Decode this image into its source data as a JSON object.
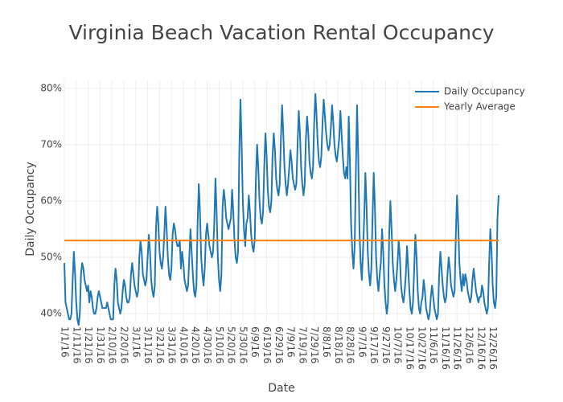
{
  "chart_data": {
    "type": "line",
    "title": "Virginia Beach Vacation Rental Occupancy",
    "x_label": "Date",
    "y_label": "Daily Occupancy",
    "xlim": [
      "1/1/16",
      "12/31/16"
    ],
    "xticks": [
      "1/1/16",
      "1/11/16",
      "1/21/16",
      "1/31/16",
      "2/10/16",
      "2/20/16",
      "3/1/16",
      "3/11/16",
      "3/21/16",
      "3/31/16",
      "4/10/16",
      "4/20/16",
      "4/30/16",
      "5/10/16",
      "5/20/16",
      "5/30/16",
      "6/9/16",
      "6/19/16",
      "6/29/16",
      "7/9/16",
      "7/19/16",
      "7/29/16",
      "8/8/16",
      "8/18/16",
      "8/28/16",
      "9/7/16",
      "9/17/16",
      "9/27/16",
      "10/7/16",
      "10/17/16",
      "10/27/16",
      "11/6/16",
      "11/16/16",
      "11/26/16",
      "12/6/16",
      "12/16/16",
      "12/26/16"
    ],
    "ylim": [
      38.6,
      81.4
    ],
    "yticks": [
      {
        "value": 40,
        "label": "40%"
      },
      {
        "value": 50,
        "label": "50%"
      },
      {
        "value": 60,
        "label": "60%"
      },
      {
        "value": 70,
        "label": "70%"
      },
      {
        "value": 80,
        "label": "80%"
      }
    ],
    "grid": true,
    "legend": "top-right",
    "series": [
      {
        "name": "Daily Occupancy",
        "color": "#1f77b4",
        "x": [
          "1/1/16",
          "1/2/16",
          "1/3/16",
          "1/4/16",
          "1/5/16",
          "1/6/16",
          "1/7/16",
          "1/8/16",
          "1/9/16",
          "1/10/16",
          "1/11/16",
          "1/12/16",
          "1/13/16",
          "1/14/16",
          "1/15/16",
          "1/16/16",
          "1/17/16",
          "1/18/16",
          "1/19/16",
          "1/20/16",
          "1/21/16",
          "1/22/16",
          "1/23/16",
          "1/24/16",
          "1/25/16",
          "1/26/16",
          "1/27/16",
          "1/28/16",
          "1/29/16",
          "1/30/16",
          "1/31/16",
          "2/1/16",
          "2/2/16",
          "2/3/16",
          "2/4/16",
          "2/5/16",
          "2/6/16",
          "2/7/16",
          "2/8/16",
          "2/9/16",
          "2/10/16",
          "2/11/16",
          "2/12/16",
          "2/13/16",
          "2/14/16",
          "2/15/16",
          "2/16/16",
          "2/17/16",
          "2/18/16",
          "2/19/16",
          "2/20/16",
          "2/21/16",
          "2/22/16",
          "2/23/16",
          "2/24/16",
          "2/25/16",
          "2/26/16",
          "2/27/16",
          "2/28/16",
          "2/29/16",
          "3/1/16",
          "3/2/16",
          "3/3/16",
          "3/4/16",
          "3/5/16",
          "3/6/16",
          "3/7/16",
          "3/8/16",
          "3/9/16",
          "3/10/16",
          "3/11/16",
          "3/12/16",
          "3/13/16",
          "3/14/16",
          "3/15/16",
          "3/16/16",
          "3/17/16",
          "3/18/16",
          "3/19/16",
          "3/20/16",
          "3/21/16",
          "3/22/16",
          "3/23/16",
          "3/24/16",
          "3/25/16",
          "3/26/16",
          "3/27/16",
          "3/28/16",
          "3/29/16",
          "3/30/16",
          "3/31/16",
          "4/1/16",
          "4/2/16",
          "4/3/16",
          "4/4/16",
          "4/5/16",
          "4/6/16",
          "4/7/16",
          "4/8/16",
          "4/9/16",
          "4/10/16",
          "4/11/16",
          "4/12/16",
          "4/13/16",
          "4/14/16",
          "4/15/16",
          "4/16/16",
          "4/17/16",
          "4/18/16",
          "4/19/16",
          "4/20/16",
          "4/21/16",
          "4/22/16",
          "4/23/16",
          "4/24/16",
          "4/25/16",
          "4/26/16",
          "4/27/16",
          "4/28/16",
          "4/29/16",
          "4/30/16",
          "5/1/16",
          "5/2/16",
          "5/3/16",
          "5/4/16",
          "5/5/16",
          "5/6/16",
          "5/7/16",
          "5/8/16",
          "5/9/16",
          "5/10/16",
          "5/11/16",
          "5/12/16",
          "5/13/16",
          "5/14/16",
          "5/15/16",
          "5/16/16",
          "5/17/16",
          "5/18/16",
          "5/19/16",
          "5/20/16",
          "5/21/16",
          "5/22/16",
          "5/23/16",
          "5/24/16",
          "5/25/16",
          "5/26/16",
          "5/27/16",
          "5/28/16",
          "5/29/16",
          "5/30/16",
          "5/31/16",
          "6/1/16",
          "6/2/16",
          "6/3/16",
          "6/4/16",
          "6/5/16",
          "6/6/16",
          "6/7/16",
          "6/8/16",
          "6/9/16",
          "6/10/16",
          "6/11/16",
          "6/12/16",
          "6/13/16",
          "6/14/16",
          "6/15/16",
          "6/16/16",
          "6/17/16",
          "6/18/16",
          "6/19/16",
          "6/20/16",
          "6/21/16",
          "6/22/16",
          "6/23/16",
          "6/24/16",
          "6/25/16",
          "6/26/16",
          "6/27/16",
          "6/28/16",
          "6/29/16",
          "6/30/16",
          "7/1/16",
          "7/2/16",
          "7/3/16",
          "7/4/16",
          "7/5/16",
          "7/6/16",
          "7/7/16",
          "7/8/16",
          "7/9/16",
          "7/10/16",
          "7/11/16",
          "7/12/16",
          "7/13/16",
          "7/14/16",
          "7/15/16",
          "7/16/16",
          "7/17/16",
          "7/18/16",
          "7/19/16",
          "7/20/16",
          "7/21/16",
          "7/22/16",
          "7/23/16",
          "7/24/16",
          "7/25/16",
          "7/26/16",
          "7/27/16",
          "7/28/16",
          "7/29/16",
          "7/30/16",
          "7/31/16",
          "8/1/16",
          "8/2/16",
          "8/3/16",
          "8/4/16",
          "8/5/16",
          "8/6/16",
          "8/7/16",
          "8/8/16",
          "8/9/16",
          "8/10/16",
          "8/11/16",
          "8/12/16",
          "8/13/16",
          "8/14/16",
          "8/15/16",
          "8/16/16",
          "8/17/16",
          "8/18/16",
          "8/19/16",
          "8/20/16",
          "8/21/16",
          "8/22/16",
          "8/23/16",
          "8/24/16",
          "8/25/16",
          "8/26/16",
          "8/27/16",
          "8/28/16",
          "8/29/16",
          "8/30/16",
          "8/31/16",
          "9/1/16",
          "9/2/16",
          "9/3/16",
          "9/4/16",
          "9/5/16",
          "9/6/16",
          "9/7/16",
          "9/8/16",
          "9/9/16",
          "9/10/16",
          "9/11/16",
          "9/12/16",
          "9/13/16",
          "9/14/16",
          "9/15/16",
          "9/16/16",
          "9/17/16",
          "9/18/16",
          "9/19/16",
          "9/20/16",
          "9/21/16",
          "9/22/16",
          "9/23/16",
          "9/24/16",
          "9/25/16",
          "9/26/16",
          "9/27/16",
          "9/28/16",
          "9/29/16",
          "9/30/16",
          "10/1/16",
          "10/2/16",
          "10/3/16",
          "10/4/16",
          "10/5/16",
          "10/6/16",
          "10/7/16",
          "10/8/16",
          "10/9/16",
          "10/10/16",
          "10/11/16",
          "10/12/16",
          "10/13/16",
          "10/14/16",
          "10/15/16",
          "10/16/16",
          "10/17/16",
          "10/18/16",
          "10/19/16",
          "10/20/16",
          "10/21/16",
          "10/22/16",
          "10/23/16",
          "10/24/16",
          "10/25/16",
          "10/26/16",
          "10/27/16",
          "10/28/16",
          "10/29/16",
          "10/30/16",
          "10/31/16",
          "11/1/16",
          "11/2/16",
          "11/3/16",
          "11/4/16",
          "11/5/16",
          "11/6/16",
          "11/7/16",
          "11/8/16",
          "11/9/16",
          "11/10/16",
          "11/11/16",
          "11/12/16",
          "11/13/16",
          "11/14/16",
          "11/15/16",
          "11/16/16",
          "11/17/16",
          "11/18/16",
          "11/19/16",
          "11/20/16",
          "11/21/16",
          "11/22/16",
          "11/23/16",
          "11/24/16",
          "11/25/16",
          "11/26/16",
          "11/27/16",
          "11/28/16",
          "11/29/16",
          "11/30/16",
          "12/1/16",
          "12/2/16",
          "12/3/16",
          "12/4/16",
          "12/5/16",
          "12/6/16",
          "12/7/16",
          "12/8/16",
          "12/9/16",
          "12/10/16",
          "12/11/16",
          "12/12/16",
          "12/13/16",
          "12/14/16",
          "12/15/16",
          "12/16/16",
          "12/17/16",
          "12/18/16",
          "12/19/16",
          "12/20/16",
          "12/21/16",
          "12/22/16",
          "12/23/16",
          "12/24/16",
          "12/25/16",
          "12/26/16",
          "12/27/16",
          "12/28/16",
          "12/29/16",
          "12/30/16",
          "12/31/16"
        ],
        "values": [
          49,
          42,
          41,
          40,
          39,
          39,
          40,
          46,
          51,
          47,
          42,
          39,
          38,
          40,
          47,
          49,
          48,
          46,
          45,
          44,
          45,
          42,
          44,
          43,
          41,
          40,
          40,
          41,
          43,
          44,
          43,
          42,
          41,
          41,
          41,
          41,
          42,
          41,
          40,
          39,
          39,
          39,
          45,
          48,
          46,
          42,
          41,
          40,
          41,
          44,
          46,
          45,
          43,
          42,
          42,
          43,
          47,
          49,
          47,
          45,
          44,
          43,
          44,
          50,
          53,
          51,
          47,
          46,
          45,
          46,
          50,
          54,
          51,
          46,
          44,
          43,
          45,
          55,
          59,
          56,
          51,
          49,
          48,
          50,
          54,
          59,
          55,
          50,
          47,
          46,
          48,
          54,
          56,
          55,
          53,
          52,
          52,
          53,
          48,
          51,
          49,
          46,
          45,
          44,
          45,
          50,
          55,
          51,
          47,
          44,
          43,
          45,
          56,
          63,
          58,
          50,
          47,
          45,
          48,
          54,
          56,
          54,
          52,
          51,
          50,
          51,
          56,
          64,
          58,
          50,
          46,
          44,
          47,
          59,
          62,
          60,
          57,
          56,
          55,
          56,
          57,
          62,
          58,
          53,
          50,
          49,
          51,
          68,
          78,
          70,
          60,
          55,
          52,
          56,
          57,
          61,
          58,
          54,
          52,
          51,
          53,
          64,
          70,
          66,
          60,
          57,
          56,
          58,
          66,
          72,
          68,
          62,
          59,
          58,
          60,
          68,
          72,
          69,
          64,
          62,
          61,
          63,
          71,
          77,
          72,
          66,
          63,
          61,
          63,
          66,
          69,
          67,
          64,
          63,
          62,
          63,
          70,
          76,
          72,
          66,
          63,
          61,
          63,
          71,
          75,
          72,
          67,
          65,
          64,
          66,
          74,
          79,
          75,
          70,
          67,
          66,
          68,
          74,
          78,
          75,
          72,
          70,
          69,
          70,
          73,
          77,
          74,
          70,
          68,
          67,
          69,
          71,
          76,
          72,
          68,
          65,
          64,
          66,
          64,
          75,
          67,
          56,
          51,
          48,
          52,
          65,
          77,
          68,
          55,
          49,
          46,
          51,
          57,
          65,
          59,
          51,
          47,
          45,
          48,
          57,
          65,
          59,
          50,
          46,
          44,
          47,
          49,
          55,
          51,
          45,
          42,
          40,
          42,
          54,
          60,
          55,
          49,
          46,
          44,
          46,
          49,
          53,
          50,
          45,
          43,
          42,
          44,
          47,
          52,
          48,
          44,
          41,
          40,
          42,
          48,
          54,
          50,
          44,
          41,
          40,
          42,
          43,
          46,
          44,
          41,
          40,
          39,
          40,
          43,
          45,
          43,
          41,
          40,
          39,
          40,
          47,
          51,
          48,
          45,
          43,
          42,
          43,
          47,
          50,
          48,
          45,
          44,
          43,
          44,
          54,
          61,
          56,
          49,
          46,
          44,
          47,
          45,
          47,
          46,
          44,
          43,
          42,
          43,
          46,
          48,
          46,
          44,
          43,
          42,
          43,
          43,
          45,
          44,
          42,
          41,
          40,
          41,
          49,
          55,
          51,
          45,
          42,
          41,
          43,
          57,
          61
        ]
      },
      {
        "name": "Yearly Average",
        "color": "#ff7f0e",
        "x": [
          "1/1/16",
          "12/31/16"
        ],
        "values": [
          53,
          53
        ]
      }
    ]
  }
}
